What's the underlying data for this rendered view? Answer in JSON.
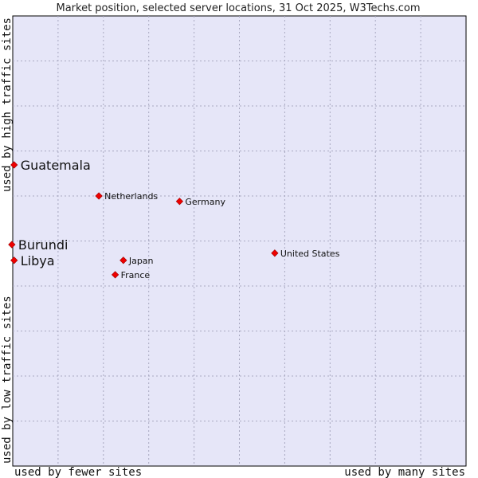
{
  "chart_data": {
    "type": "scatter",
    "title": "Market position, selected server locations, 31 Oct 2025, W3Techs.com",
    "xlabel_left": "used by fewer sites",
    "xlabel_right": "used by many sites",
    "ylabel_bottom": "used by low traffic sites",
    "ylabel_top": "used by high traffic sites",
    "xlim": [
      0,
      100
    ],
    "ylim": [
      0,
      100
    ],
    "grid": true,
    "colors": {
      "plot_background": "#e6e6f8",
      "grid": "#a8a8c0",
      "marker": "#ee0000",
      "marker_stroke": "#990000"
    },
    "points": [
      {
        "name": "Guatemala",
        "x": 0.3,
        "y": 66.9,
        "size": "large"
      },
      {
        "name": "Netherlands",
        "x": 19.0,
        "y": 60.0,
        "size": "small"
      },
      {
        "name": "Germany",
        "x": 36.8,
        "y": 58.8,
        "size": "small"
      },
      {
        "name": "Burundi",
        "x": -0.2,
        "y": 49.2,
        "size": "large"
      },
      {
        "name": "Libya",
        "x": 0.3,
        "y": 45.7,
        "size": "large"
      },
      {
        "name": "Japan",
        "x": 24.4,
        "y": 45.7,
        "size": "small"
      },
      {
        "name": "United States",
        "x": 57.8,
        "y": 47.3,
        "size": "small"
      },
      {
        "name": "France",
        "x": 22.6,
        "y": 42.5,
        "size": "small"
      }
    ]
  }
}
